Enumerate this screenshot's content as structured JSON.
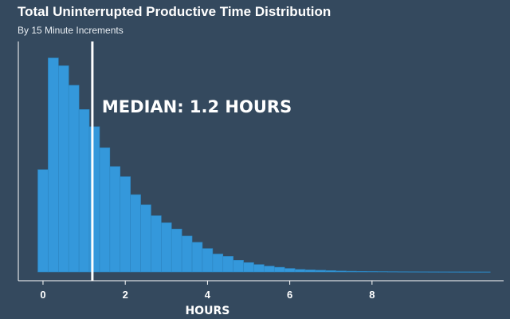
{
  "header": {
    "title": "Total Uninterrupted Productive Time Distribution",
    "subtitle": "By 15 Minute Increments"
  },
  "colors": {
    "background": "#34495e",
    "bar": "#3498db",
    "bar_edge": "#2c84bf",
    "median_line": "#ffffff",
    "axis": "#ffffff"
  },
  "chart_data": {
    "type": "bar",
    "title": "Total Uninterrupted Productive Time Distribution",
    "subtitle": "By 15 Minute Increments",
    "xlabel": "HOURS",
    "ylabel": "",
    "bin_width_hours": 0.25,
    "x": [
      0,
      0.25,
      0.5,
      0.75,
      1,
      1.25,
      1.5,
      1.75,
      2,
      2.25,
      2.5,
      2.75,
      3,
      3.25,
      3.5,
      3.75,
      4,
      4.25,
      4.5,
      4.75,
      5,
      5.25,
      5.5,
      5.75,
      6,
      6.25,
      6.5,
      6.75,
      7,
      7.25,
      7.5,
      7.75,
      8,
      8.25,
      8.5,
      8.75,
      9,
      9.25,
      9.5,
      9.75,
      10,
      10.25,
      10.5,
      10.75
    ],
    "values": [
      131,
      274,
      264,
      239,
      208,
      186,
      159,
      135,
      122,
      99,
      86,
      72,
      63,
      55,
      46,
      38,
      30,
      23,
      20,
      15,
      12,
      9.5,
      7.5,
      6,
      4.5,
      3.2,
      2.6,
      2.2,
      1.7,
      1.2,
      0.9,
      0.7,
      0.6,
      0.5,
      0.4,
      0.3,
      0.25,
      0.2,
      0.15,
      0.12,
      0.1,
      0.08,
      0.06,
      0.05
    ],
    "xticks": [
      "0",
      "2",
      "4",
      "6",
      "8"
    ],
    "xtick_values": [
      0,
      2,
      4,
      6,
      8
    ],
    "xlim": [
      -0.6,
      11.2
    ],
    "ylim": [
      0,
      290
    ],
    "median": {
      "value": 1.2,
      "label": "MEDIAN: 1.2 HOURS"
    },
    "grid": false,
    "legend": "none"
  }
}
